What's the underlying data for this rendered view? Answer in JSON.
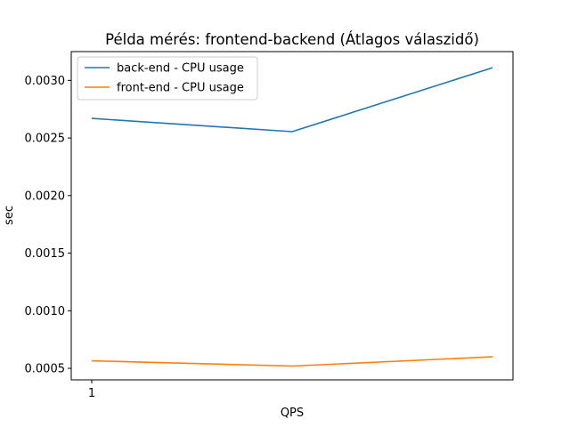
{
  "chart_data": {
    "type": "line",
    "title": "Példa mérés: frontend-backend (Átlagos válaszidő)",
    "xlabel": "QPS",
    "ylabel": "sec",
    "x_tick_labels": [
      "1"
    ],
    "y_ticks": [
      0.0005,
      0.001,
      0.0015,
      0.002,
      0.0025,
      0.003
    ],
    "y_tick_labels": [
      "0.0005",
      "0.0010",
      "0.0015",
      "0.0020",
      "0.0025",
      "0.0030"
    ],
    "ylim": [
      0.0004,
      0.00325
    ],
    "legend_position": "top-left",
    "series": [
      {
        "name": "back-end - CPU usage",
        "color": "#1f77b4",
        "values": [
          0.00267,
          0.002555,
          0.00311
        ]
      },
      {
        "name": "front-end - CPU usage",
        "color": "#ff7f0e",
        "values": [
          0.000565,
          0.00052,
          0.0006
        ]
      }
    ]
  }
}
